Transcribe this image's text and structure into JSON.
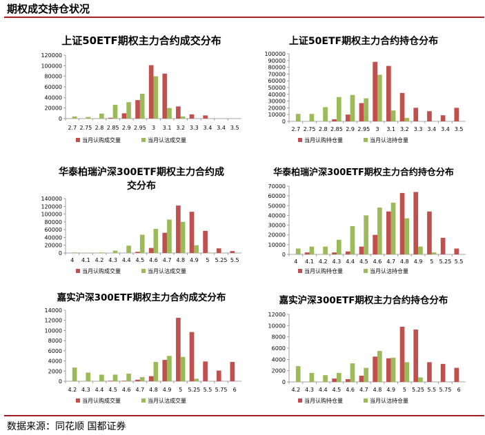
{
  "page_title": "期权成交持仓状况",
  "source": "数据来源：同花顺 国都证券",
  "colors": {
    "call": "#c0504d",
    "put": "#9bbb59",
    "rule": "#a31f22"
  },
  "chart_data": [
    {
      "type": "bar",
      "title_lines": [
        "上证50ETF期权主力合约成交分布"
      ],
      "categories": [
        "2.7",
        "2.75",
        "2.8",
        "2.85",
        "2.9",
        "2.95",
        "3",
        "3.1",
        "3.2",
        "3.3",
        "3.4",
        "3.4",
        "3.5"
      ],
      "ylim": [
        0,
        120000
      ],
      "yticks": [
        0,
        20000,
        40000,
        60000,
        80000,
        100000,
        120000
      ],
      "series": [
        {
          "name": "当月认购成交量",
          "values": [
            0,
            0,
            0,
            1500,
            10000,
            35000,
            101000,
            85000,
            23000,
            8000,
            6000,
            0,
            0
          ]
        },
        {
          "name": "当月认沽成交量",
          "values": [
            4000,
            3000,
            9500,
            26000,
            31000,
            47000,
            80000,
            20000,
            4000,
            0,
            0,
            0,
            0
          ]
        }
      ]
    },
    {
      "type": "bar",
      "title_lines": [
        "上证50ETF期权主力合约持仓分布"
      ],
      "categories": [
        "2.7",
        "2.75",
        "2.8",
        "2.85",
        "2.9",
        "2.95",
        "3",
        "3.1",
        "3.2",
        "3.3",
        "3.4",
        "3.4",
        "3.5"
      ],
      "ylim": [
        0,
        100000
      ],
      "yticks": [
        0,
        10000,
        20000,
        30000,
        40000,
        50000,
        60000,
        70000,
        80000,
        90000,
        100000
      ],
      "series": [
        {
          "name": "当月认购持仓量",
          "values": [
            0,
            0,
            0,
            3000,
            10000,
            27000,
            88000,
            82000,
            42000,
            20000,
            15000,
            9000,
            20000
          ]
        },
        {
          "name": "当月认沽持仓量",
          "values": [
            11000,
            11000,
            21000,
            36000,
            39000,
            34000,
            69000,
            16000,
            5000,
            0,
            0,
            0,
            0
          ]
        }
      ]
    },
    {
      "type": "bar",
      "title_lines": [
        "华泰柏瑞沪深300ETF期权主力合约成",
        "交分布"
      ],
      "categories": [
        "4",
        "4.1",
        "4.2",
        "4.3",
        "4.4",
        "4.5",
        "4.6",
        "4.7",
        "4.8",
        "4.9",
        "5",
        "5.25",
        "5.5"
      ],
      "ylim": [
        0,
        140000
      ],
      "yticks": [
        0,
        20000,
        40000,
        60000,
        80000,
        100000,
        120000,
        140000
      ],
      "series": [
        {
          "name": "当月认购成交量",
          "values": [
            0,
            0,
            0,
            0,
            0,
            3000,
            13000,
            52000,
            122000,
            106000,
            57000,
            12000,
            5000
          ]
        },
        {
          "name": "当月认沽成交量",
          "values": [
            1500,
            1000,
            1500,
            6000,
            19000,
            47000,
            62000,
            86000,
            80000,
            20000,
            1000,
            0,
            0
          ]
        }
      ]
    },
    {
      "type": "bar",
      "title_lines": [
        "华泰柏瑞沪深300ETF期权主力合约持仓分布"
      ],
      "categories": [
        "4",
        "4.1",
        "4.2",
        "4.3",
        "4.4",
        "4.5",
        "4.6",
        "4.7",
        "4.8",
        "4.9",
        "5",
        "5.25",
        "5.5"
      ],
      "ylim": [
        0,
        70000
      ],
      "yticks": [
        0,
        10000,
        20000,
        30000,
        40000,
        50000,
        60000,
        70000
      ],
      "series": [
        {
          "name": "当月认购持仓量",
          "values": [
            0,
            2000,
            0,
            2000,
            3000,
            8000,
            20000,
            44000,
            63000,
            64000,
            44000,
            17000,
            6000
          ]
        },
        {
          "name": "当月认沽持仓量",
          "values": [
            6000,
            8000,
            8000,
            15000,
            29000,
            40000,
            48000,
            53000,
            37000,
            8000,
            2000,
            0,
            0
          ]
        }
      ]
    },
    {
      "type": "bar",
      "title_lines": [
        "嘉实沪深300ETF期权主力合约成交分布"
      ],
      "categories": [
        "4.2",
        "4.3",
        "4.4",
        "4.5",
        "4.6",
        "4.7",
        "4.8",
        "4.9",
        "5",
        "5.25",
        "5.5",
        "5.75",
        "6"
      ],
      "ylim": [
        0,
        14000
      ],
      "yticks": [
        0,
        2000,
        4000,
        6000,
        8000,
        10000,
        12000,
        14000
      ],
      "series": [
        {
          "name": "当月认购成交量",
          "values": [
            0,
            0,
            0,
            100,
            100,
            300,
            1000,
            4200,
            12500,
            9700,
            3900,
            2100,
            3800
          ]
        },
        {
          "name": "当月认沽成交量",
          "values": [
            2700,
            1700,
            1300,
            1300,
            1500,
            800,
            3800,
            5000,
            4800,
            500,
            0,
            0,
            0
          ]
        }
      ]
    },
    {
      "type": "bar",
      "title_lines": [
        "嘉实沪深300ETF期权主力合约持仓分布"
      ],
      "categories": [
        "4.2",
        "4.3",
        "4.4",
        "4.5",
        "4.6",
        "4.7",
        "4.8",
        "4.9",
        "5",
        "5.25",
        "5.5",
        "5.75",
        "6"
      ],
      "ylim": [
        0,
        12000
      ],
      "yticks": [
        0,
        2000,
        4000,
        6000,
        8000,
        10000,
        12000
      ],
      "series": [
        {
          "name": "当月认购持仓量",
          "values": [
            0,
            0,
            0,
            600,
            500,
            1100,
            4500,
            4200,
            9800,
            9300,
            3500,
            3200,
            2500
          ]
        },
        {
          "name": "当月认沽持仓量",
          "values": [
            2800,
            1600,
            1200,
            1600,
            3300,
            2500,
            5500,
            4300,
            3500,
            800,
            0,
            0,
            0
          ]
        }
      ]
    }
  ]
}
